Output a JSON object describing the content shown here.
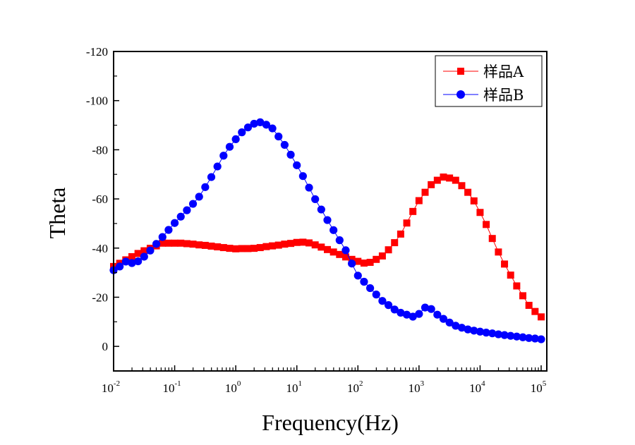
{
  "chart_data": {
    "type": "line",
    "title": "",
    "xlabel": "Frequency(Hz)",
    "ylabel": "Theta",
    "xscale": "log",
    "xlim": [
      0.01,
      100000
    ],
    "ylim": [
      10,
      -120
    ],
    "y_inverted": true,
    "grid": false,
    "legend": {
      "position": "top-right"
    },
    "x_ticks": [
      {
        "base": "10",
        "exp": "-2",
        "value": 0.01
      },
      {
        "base": "10",
        "exp": "-1",
        "value": 0.1
      },
      {
        "base": "10",
        "exp": "0",
        "value": 1
      },
      {
        "base": "10",
        "exp": "1",
        "value": 10
      },
      {
        "base": "10",
        "exp": "2",
        "value": 100
      },
      {
        "base": "10",
        "exp": "3",
        "value": 1000
      },
      {
        "base": "10",
        "exp": "4",
        "value": 10000
      },
      {
        "base": "10",
        "exp": "5",
        "value": 100000
      }
    ],
    "y_ticks": [
      {
        "label": "-120",
        "value": -120
      },
      {
        "label": "-100",
        "value": -100
      },
      {
        "label": "-80",
        "value": -80
      },
      {
        "label": "-60",
        "value": -60
      },
      {
        "label": "-40",
        "value": -40
      },
      {
        "label": "-20",
        "value": -20
      },
      {
        "label": "0",
        "value": 0
      }
    ],
    "x_log10": [
      -2.0,
      -1.9,
      -1.8,
      -1.7,
      -1.6,
      -1.5,
      -1.4,
      -1.3,
      -1.2,
      -1.1,
      -1.0,
      -0.9,
      -0.8,
      -0.7,
      -0.6,
      -0.5,
      -0.4,
      -0.3,
      -0.2,
      -0.1,
      0.0,
      0.1,
      0.2,
      0.3,
      0.4,
      0.5,
      0.6,
      0.7,
      0.8,
      0.9,
      1.0,
      1.1,
      1.2,
      1.3,
      1.4,
      1.5,
      1.6,
      1.7,
      1.8,
      1.9,
      2.0,
      2.1,
      2.2,
      2.3,
      2.4,
      2.5,
      2.6,
      2.7,
      2.8,
      2.9,
      3.0,
      3.1,
      3.2,
      3.3,
      3.4,
      3.5,
      3.6,
      3.7,
      3.8,
      3.9,
      4.0,
      4.1,
      4.2,
      4.3,
      4.4,
      4.5,
      4.6,
      4.7,
      4.8,
      4.9,
      5.0
    ],
    "series": [
      {
        "name": "样品A",
        "color": "#ff0000",
        "marker": "square",
        "values": [
          -32.5,
          -33.8,
          -35.2,
          -36.5,
          -37.8,
          -38.9,
          -39.9,
          -40.9,
          -42.0,
          -42.0,
          -42.0,
          -42.0,
          -41.8,
          -41.6,
          -41.3,
          -41.1,
          -40.8,
          -40.5,
          -40.2,
          -39.9,
          -39.7,
          -39.8,
          -39.8,
          -39.9,
          -40.2,
          -40.6,
          -40.9,
          -41.2,
          -41.6,
          -41.9,
          -42.3,
          -42.4,
          -42.1,
          -41.3,
          -40.4,
          -39.4,
          -38.4,
          -37.4,
          -36.4,
          -35.4,
          -34.6,
          -33.9,
          -34.2,
          -35.4,
          -36.8,
          -39.3,
          -42.2,
          -45.7,
          -50.2,
          -54.9,
          -59.3,
          -62.7,
          -65.8,
          -67.6,
          -68.9,
          -68.5,
          -67.6,
          -65.4,
          -62.7,
          -59.2,
          -54.5,
          -49.6,
          -43.9,
          -38.4,
          -33.5,
          -29.0,
          -24.6,
          -20.6,
          -16.7,
          -14.2,
          -12.0
        ]
      },
      {
        "name": "样品B",
        "color": "#0000ff",
        "marker": "circle",
        "values": [
          -31.0,
          -32.5,
          -34.5,
          -33.9,
          -34.6,
          -36.5,
          -39.0,
          -41.7,
          -44.5,
          -47.4,
          -50.2,
          -52.8,
          -55.4,
          -58.0,
          -60.9,
          -64.8,
          -68.9,
          -73.2,
          -77.6,
          -81.2,
          -84.3,
          -87.1,
          -89.1,
          -90.6,
          -91.2,
          -90.2,
          -88.7,
          -85.4,
          -82.0,
          -78.0,
          -73.7,
          -69.3,
          -64.6,
          -59.9,
          -55.7,
          -51.4,
          -47.3,
          -43.2,
          -39.1,
          -33.7,
          -28.8,
          -26.3,
          -23.7,
          -21.1,
          -18.5,
          -16.8,
          -15.0,
          -13.7,
          -12.9,
          -12.1,
          -13.2,
          -15.8,
          -15.2,
          -12.9,
          -11.2,
          -9.7,
          -8.4,
          -7.6,
          -6.9,
          -6.4,
          -6.0,
          -5.6,
          -5.3,
          -4.9,
          -4.6,
          -4.3,
          -4.0,
          -3.7,
          -3.4,
          -3.2,
          -2.9
        ]
      }
    ]
  }
}
